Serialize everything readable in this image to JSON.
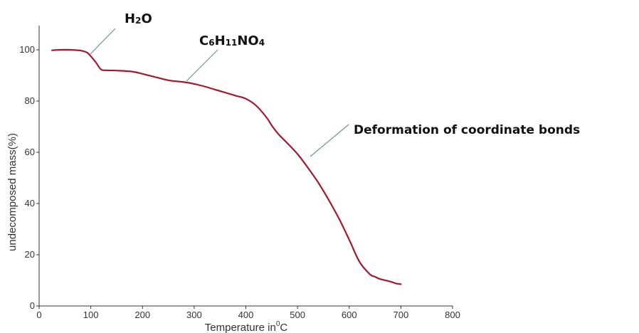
{
  "chart_data": {
    "type": "line",
    "title": "",
    "xlabel": "Temperature in",
    "xlabel_super": "0",
    "xlabel_suffix": "C",
    "ylabel": "undecomposed mass(%)",
    "xlim": [
      0,
      800
    ],
    "ylim": [
      0,
      110
    ],
    "grid": false,
    "x_ticks": [
      0,
      100,
      200,
      300,
      400,
      500,
      600,
      700,
      800
    ],
    "y_ticks": [
      0,
      20,
      40,
      60,
      80,
      100
    ],
    "series": [
      {
        "color": "#a3182c",
        "x": [
          25,
          40,
          60,
          80,
          92,
          100,
          110,
          120,
          130,
          150,
          180,
          200,
          220,
          250,
          280,
          300,
          320,
          340,
          360,
          380,
          400,
          420,
          440,
          450,
          460,
          470,
          480,
          500,
          520,
          540,
          560,
          580,
          600,
          620,
          640,
          650,
          660,
          680,
          690,
          700
        ],
        "y": [
          99.8,
          100,
          100,
          99.7,
          99,
          97.5,
          95,
          92.3,
          92,
          91.9,
          91.5,
          90.6,
          89.6,
          88.1,
          87.4,
          86.7,
          85.7,
          84.5,
          83.3,
          82.1,
          80.9,
          78.2,
          73.6,
          70.5,
          67.8,
          65.6,
          63.6,
          59.3,
          54,
          48.2,
          41.5,
          34.2,
          25.9,
          17.2,
          12.4,
          11.4,
          10.5,
          9.5,
          8.8,
          8.5
        ]
      }
    ],
    "annotations": [
      {
        "label_main": "H",
        "label_sub1": "2",
        "label_mid": "O",
        "label_sub2": "",
        "x": 100,
        "y": 98
      },
      {
        "label_main": "C",
        "label_sub1": "6",
        "label_mid": "H",
        "label_sub2": "11",
        "label_tail": "NO",
        "label_sub3": "4",
        "x": 290,
        "y": 87
      },
      {
        "label_main": "Deformation of coordinate bonds",
        "x": 520,
        "y": 57
      }
    ]
  }
}
